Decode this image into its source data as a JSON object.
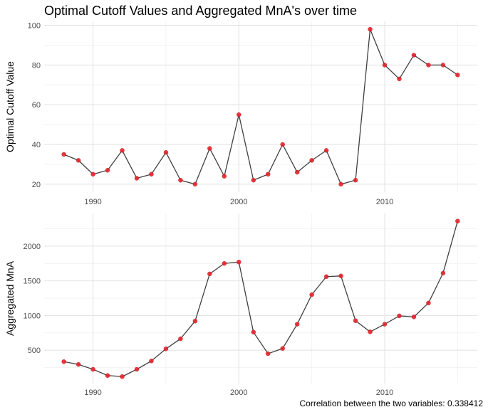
{
  "title": "Optimal Cutoff Values and Aggregated MnA's over time",
  "caption": "Correlation between the two variables: 0.338412",
  "colors": {
    "line": "#404040",
    "point": "#e8232b",
    "grid_major": "#e4e4e4",
    "grid_minor": "#f2f2f2"
  },
  "chart_data": [
    {
      "type": "line",
      "title": "",
      "xlabel": "",
      "ylabel": "Optimal Cutoff Value",
      "xlim": [
        1986.65,
        2016.35
      ],
      "ylim": [
        16,
        102
      ],
      "x_ticks": [
        1990,
        2000,
        2010
      ],
      "x_tick_labels": [
        "1990",
        "2000",
        "2010"
      ],
      "y_ticks": [
        20,
        40,
        60,
        80,
        100
      ],
      "y_tick_labels": [
        "20",
        "40",
        "60",
        "80",
        "100"
      ],
      "grid": true,
      "x": [
        1988,
        1989,
        1990,
        1991,
        1992,
        1993,
        1994,
        1995,
        1996,
        1997,
        1998,
        1999,
        2000,
        2001,
        2002,
        2003,
        2004,
        2005,
        2006,
        2007,
        2008,
        2009,
        2010,
        2011,
        2012,
        2013,
        2014,
        2015
      ],
      "y": [
        35,
        32,
        25,
        27,
        37,
        23,
        25,
        36,
        22,
        20,
        38,
        24,
        55,
        22,
        25,
        40,
        26,
        32,
        37,
        20,
        22,
        98,
        80,
        73,
        85,
        80,
        80,
        75
      ]
    },
    {
      "type": "line",
      "title": "",
      "xlabel": "",
      "ylabel": "Aggregated MnA",
      "xlim": [
        1986.65,
        2016.35
      ],
      "ylim": [
        20,
        2470
      ],
      "x_ticks": [
        1990,
        2000,
        2010
      ],
      "x_tick_labels": [
        "1990",
        "2000",
        "2010"
      ],
      "y_ticks": [
        500,
        1000,
        1500,
        2000
      ],
      "y_tick_labels": [
        "500",
        "1000",
        "1500",
        "2000"
      ],
      "grid": true,
      "x": [
        1988,
        1989,
        1990,
        1991,
        1992,
        1993,
        1994,
        1995,
        1996,
        1997,
        1998,
        1999,
        2000,
        2001,
        2002,
        2003,
        2004,
        2005,
        2006,
        2007,
        2008,
        2009,
        2010,
        2011,
        2012,
        2013,
        2014,
        2015
      ],
      "y": [
        335,
        295,
        225,
        135,
        120,
        225,
        345,
        520,
        665,
        920,
        1600,
        1750,
        1770,
        760,
        450,
        525,
        875,
        1300,
        1560,
        1570,
        925,
        765,
        875,
        995,
        980,
        1180,
        1610,
        2360
      ]
    }
  ]
}
